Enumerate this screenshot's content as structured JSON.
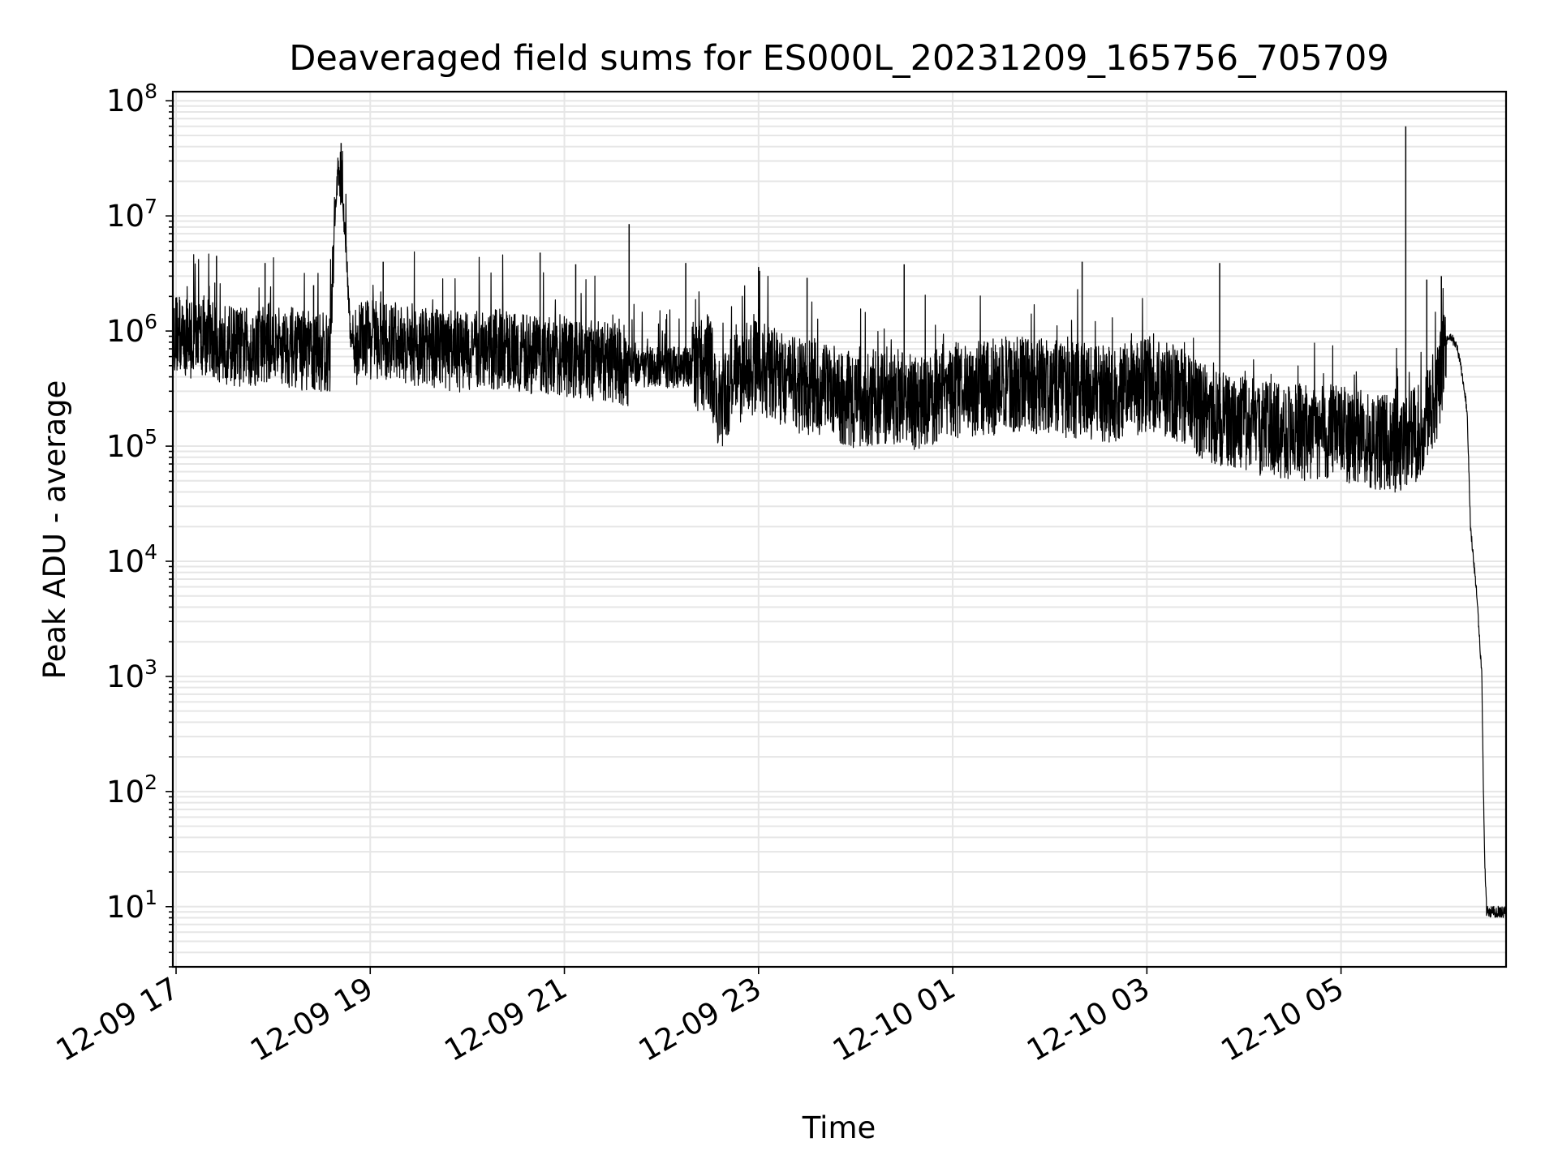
{
  "chart_data": {
    "type": "line",
    "title": "Deaveraged field sums for ES000L_20231209_165756_705709",
    "xlabel": "Time",
    "ylabel": "Peak ADU - average",
    "yscale": "log",
    "ylim": [
      3,
      120000000
    ],
    "xlim": [
      "12-09 16:58",
      "12-10 06:42"
    ],
    "grid": true,
    "line_color": "#000000",
    "grid_color": "#e6e6e6",
    "x_ticks": [
      {
        "label": "12-09 17",
        "t": "12-09 17:00"
      },
      {
        "label": "12-09 19",
        "t": "12-09 19:00"
      },
      {
        "label": "12-09 21",
        "t": "12-09 21:00"
      },
      {
        "label": "12-09 23",
        "t": "12-09 23:00"
      },
      {
        "label": "12-10 01",
        "t": "12-10 01:00"
      },
      {
        "label": "12-10 03",
        "t": "12-10 03:00"
      },
      {
        "label": "12-10 05",
        "t": "12-10 05:00"
      }
    ],
    "y_ticks": [
      {
        "base": "10",
        "exp": "1",
        "value": 10
      },
      {
        "base": "10",
        "exp": "2",
        "value": 100
      },
      {
        "base": "10",
        "exp": "3",
        "value": 1000
      },
      {
        "base": "10",
        "exp": "4",
        "value": 10000
      },
      {
        "base": "10",
        "exp": "5",
        "value": 100000
      },
      {
        "base": "10",
        "exp": "6",
        "value": 1000000
      },
      {
        "base": "10",
        "exp": "7",
        "value": 10000000
      },
      {
        "base": "10",
        "exp": "8",
        "value": 100000000
      }
    ],
    "series": [
      {
        "x": [
          "12-09 16:58",
          "12-09 17:05",
          "12-09 17:15",
          "12-09 17:25",
          "12-09 17:35",
          "12-09 17:45",
          "12-09 17:55",
          "12-09 18:05",
          "12-09 18:15",
          "12-09 18:25",
          "12-09 18:35",
          "12-09 18:38",
          "12-09 18:40",
          "12-09 18:42",
          "12-09 18:44",
          "12-09 18:46",
          "12-09 18:48",
          "12-09 18:50",
          "12-09 18:55",
          "12-09 19:05",
          "12-09 19:20",
          "12-09 19:40",
          "12-09 20:00",
          "12-09 20:20",
          "12-09 20:40",
          "12-09 21:00",
          "12-09 21:20",
          "12-09 21:40",
          "12-09 22:00",
          "12-09 22:20",
          "12-09 22:30",
          "12-09 22:35",
          "12-09 22:45",
          "12-09 23:00",
          "12-09 23:20",
          "12-09 23:40",
          "12-10 00:00",
          "12-10 00:20",
          "12-10 00:40",
          "12-10 01:00",
          "12-10 01:20",
          "12-10 01:40",
          "12-10 02:00",
          "12-10 02:20",
          "12-10 02:40",
          "12-10 03:00",
          "12-10 03:20",
          "12-10 03:40",
          "12-10 04:00",
          "12-10 04:20",
          "12-10 04:40",
          "12-10 05:00",
          "12-10 05:20",
          "12-10 05:40",
          "12-10 05:50",
          "12-10 06:00",
          "12-10 06:05",
          "12-10 06:08",
          "12-10 06:12",
          "12-10 06:14",
          "12-10 06:18",
          "12-10 06:20",
          "12-10 06:24",
          "12-10 06:27",
          "12-10 06:28",
          "12-10 06:29",
          "12-10 06:30",
          "12-10 06:32",
          "12-10 06:35",
          "12-10 06:38",
          "12-10 06:42"
        ],
        "values": [
          1000000,
          850000,
          900000,
          800000,
          750000,
          700000,
          800000,
          750000,
          700000,
          650000,
          600000,
          9000000,
          25000000,
          15000000,
          9000000,
          3000000,
          800000,
          700000,
          900000,
          800000,
          750000,
          700000,
          650000,
          700000,
          620000,
          600000,
          550000,
          500000,
          480000,
          500000,
          550000,
          200000,
          400000,
          500000,
          350000,
          300000,
          250000,
          280000,
          230000,
          300000,
          320000,
          350000,
          320000,
          300000,
          280000,
          350000,
          280000,
          180000,
          150000,
          140000,
          130000,
          130000,
          110000,
          100000,
          150000,
          300000,
          800000,
          900000,
          700000,
          500000,
          200000,
          20000,
          5000,
          1000,
          100,
          20,
          9,
          9,
          9,
          9,
          9
        ]
      }
    ],
    "spikes": [
      {
        "t": "12-09 17:25",
        "value": 4500000
      },
      {
        "t": "12-09 17:55",
        "value": 3900000
      },
      {
        "t": "12-09 18:25",
        "value": 2500000
      },
      {
        "t": "12-09 18:42",
        "value": 43000000
      },
      {
        "t": "12-09 19:08",
        "value": 4000000
      },
      {
        "t": "12-09 20:45",
        "value": 4800000
      },
      {
        "t": "12-09 21:07",
        "value": 3800000
      },
      {
        "t": "12-09 21:40",
        "value": 8500000
      },
      {
        "t": "12-09 22:15",
        "value": 3900000
      },
      {
        "t": "12-09 23:00",
        "value": 3600000
      },
      {
        "t": "12-09 23:30",
        "value": 2900000
      },
      {
        "t": "12-10 00:30",
        "value": 3800000
      },
      {
        "t": "12-10 02:20",
        "value": 4000000
      },
      {
        "t": "12-10 03:45",
        "value": 3900000
      },
      {
        "t": "12-10 05:40",
        "value": 60000000
      },
      {
        "t": "12-10 05:53",
        "value": 2800000
      },
      {
        "t": "12-10 06:02",
        "value": 3000000
      }
    ]
  }
}
